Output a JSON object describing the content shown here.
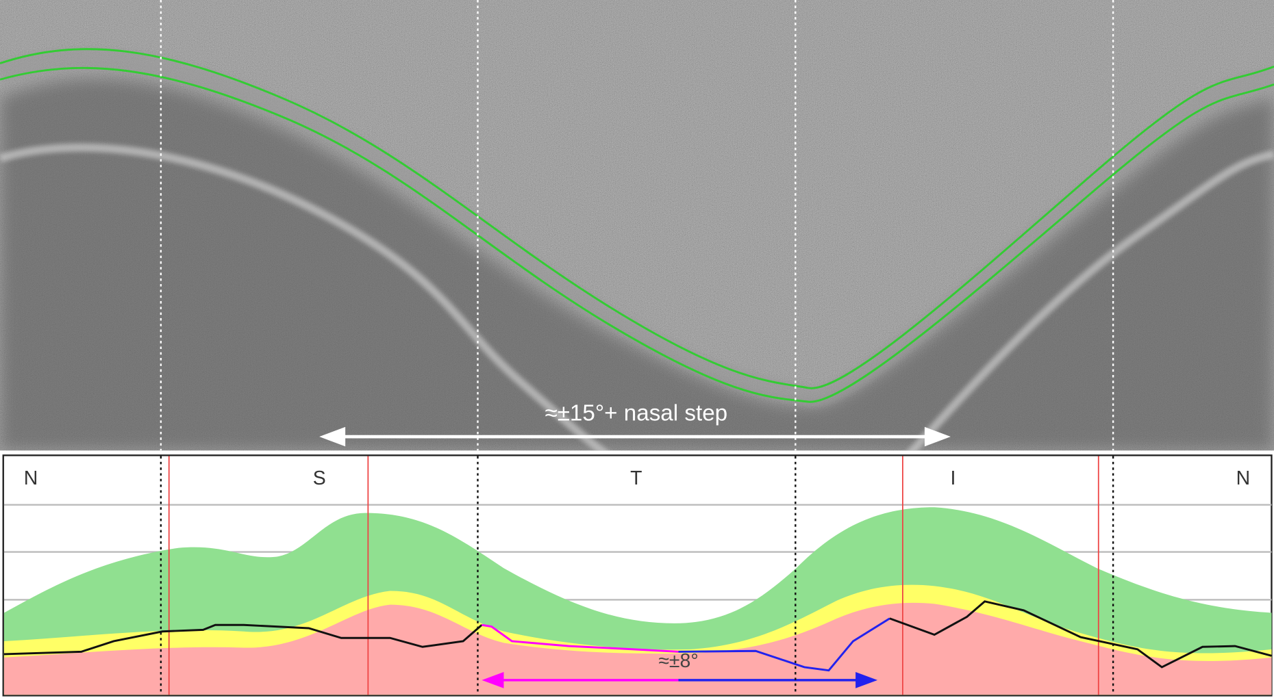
{
  "top_panel": {
    "annotation": "≈±15°+ nasal step"
  },
  "bottom_panel": {
    "sector_labels": [
      "N",
      "S",
      "T",
      "I",
      "N"
    ],
    "annotation": "≈±8°"
  }
}
